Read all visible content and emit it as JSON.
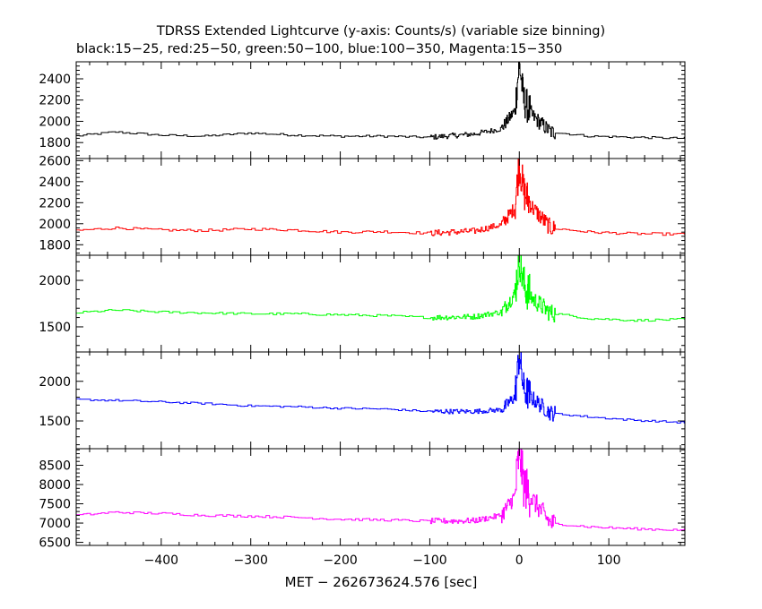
{
  "chart_data": {
    "type": "line",
    "title": "TDRSS Extended Lightcurve (y-axis: Counts/s) (variable size binning)",
    "subtitle": "black:15−25, red:25−50, green:50−100, blue:100−350, Magenta:15−350",
    "xlabel": "MET − 262673624.576 [sec]",
    "xlim": [
      -495,
      185
    ],
    "x_ticks": [
      -400,
      -300,
      -200,
      -100,
      0,
      100
    ],
    "x_tick_labels": [
      "−400",
      "−300",
      "−200",
      "−100",
      "0",
      "100"
    ],
    "panels": [
      {
        "name": "black:15−25",
        "color": "#000000",
        "ylim": [
          1650,
          2560
        ],
        "y_ticks": [
          1800,
          2000,
          2200,
          2400
        ],
        "y_tick_labels": [
          "1800",
          "2000",
          "2200",
          "2400"
        ],
        "x": [
          -495,
          -450,
          -400,
          -350,
          -300,
          -250,
          -200,
          -150,
          -100,
          -50,
          -20,
          -5,
          0,
          5,
          15,
          35,
          80,
          130,
          185
        ],
        "values": [
          1860,
          1900,
          1870,
          1860,
          1890,
          1870,
          1860,
          1860,
          1850,
          1880,
          1930,
          2100,
          2550,
          2200,
          2050,
          1900,
          1860,
          1850,
          1840
        ],
        "noise_base": 10,
        "noise_burst": 160
      },
      {
        "name": "red:25−50",
        "color": "#ff0000",
        "ylim": [
          1700,
          2620
        ],
        "y_ticks": [
          1800,
          2000,
          2200,
          2400,
          2600
        ],
        "y_tick_labels": [
          "1800",
          "2000",
          "2200",
          "2400",
          "2600"
        ],
        "x": [
          -495,
          -450,
          -400,
          -350,
          -300,
          -250,
          -200,
          -150,
          -100,
          -50,
          -20,
          -5,
          0,
          5,
          15,
          35,
          80,
          130,
          185
        ],
        "values": [
          1935,
          1960,
          1940,
          1935,
          1950,
          1940,
          1920,
          1925,
          1910,
          1930,
          1990,
          2150,
          2580,
          2300,
          2150,
          1960,
          1920,
          1905,
          1900
        ],
        "noise_base": 12,
        "noise_burst": 180
      },
      {
        "name": "green:50−100",
        "color": "#00ff00",
        "ylim": [
          1230,
          2270
        ],
        "y_ticks": [
          1500,
          2000
        ],
        "y_tick_labels": [
          "1500",
          "2000"
        ],
        "x": [
          -495,
          -450,
          -400,
          -350,
          -300,
          -250,
          -200,
          -150,
          -100,
          -50,
          -20,
          -5,
          0,
          5,
          15,
          35,
          80,
          130,
          185
        ],
        "values": [
          1650,
          1680,
          1660,
          1650,
          1640,
          1640,
          1630,
          1620,
          1600,
          1610,
          1660,
          1850,
          2250,
          1950,
          1800,
          1650,
          1590,
          1570,
          1580
        ],
        "noise_base": 12,
        "noise_burst": 220
      },
      {
        "name": "blue:100−350",
        "color": "#0000ff",
        "ylim": [
          1150,
          2370
        ],
        "y_ticks": [
          1500,
          2000
        ],
        "y_tick_labels": [
          "1500",
          "2000"
        ],
        "x": [
          -495,
          -450,
          -400,
          -350,
          -300,
          -250,
          -200,
          -150,
          -100,
          -50,
          -20,
          -5,
          0,
          5,
          15,
          35,
          80,
          130,
          185
        ],
        "values": [
          1770,
          1760,
          1740,
          1720,
          1690,
          1680,
          1660,
          1650,
          1620,
          1620,
          1640,
          1800,
          2330,
          1900,
          1780,
          1600,
          1550,
          1510,
          1480
        ],
        "noise_base": 12,
        "noise_burst": 220
      },
      {
        "name": "Magenta:15−350",
        "color": "#ff00ff",
        "ylim": [
          6420,
          8930
        ],
        "y_ticks": [
          6500,
          7000,
          7500,
          8000,
          8500
        ],
        "y_tick_labels": [
          "6500",
          "7000",
          "7500",
          "8000",
          "8500"
        ],
        "x": [
          -495,
          -450,
          -400,
          -350,
          -300,
          -250,
          -200,
          -150,
          -100,
          -50,
          -20,
          -5,
          0,
          5,
          15,
          35,
          80,
          130,
          185
        ],
        "values": [
          7200,
          7280,
          7250,
          7200,
          7180,
          7150,
          7100,
          7080,
          7050,
          7060,
          7200,
          7700,
          8900,
          8000,
          7600,
          7000,
          6900,
          6850,
          6820
        ],
        "noise_base": 30,
        "noise_burst": 600
      }
    ]
  }
}
